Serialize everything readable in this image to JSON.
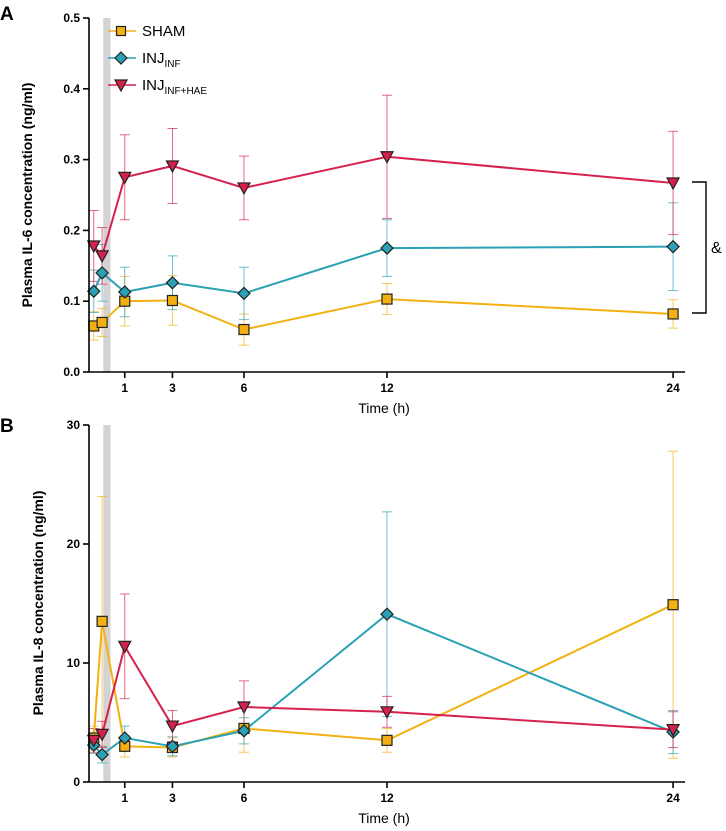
{
  "chart_data": [
    {
      "panel": "A",
      "type": "line",
      "ylabel": "Plasma  IL-6 concentration (ng/ml)",
      "xlabel": "Time (h)",
      "ylim": [
        0,
        0.5
      ],
      "yticks": [
        "0.0",
        "0.1",
        "0.2",
        "0.3",
        "0.4",
        "0.5"
      ],
      "yticks_values": [
        0,
        0.1,
        0.2,
        0.3,
        0.4,
        0.5
      ],
      "xticks": [
        "1",
        "3",
        "6",
        "12",
        "24"
      ],
      "xticks_values": [
        1,
        3,
        6,
        12,
        24
      ],
      "xlim": [
        -0.5,
        24.5
      ],
      "shaded_interval": [
        0.1,
        0.4
      ],
      "significance_label": "&",
      "series": [
        {
          "name": "SHAM",
          "color": "#f2b111",
          "marker": "square",
          "x": [
            -0.3,
            0.05,
            1,
            3,
            6,
            12,
            24
          ],
          "y": [
            0.065,
            0.07,
            0.1,
            0.101,
            0.06,
            0.103,
            0.082
          ],
          "err": [
            0.02,
            0.02,
            0.035,
            0.035,
            0.022,
            0.022,
            0.02
          ]
        },
        {
          "name": "INJ",
          "subscript": "INF",
          "color": "#2aa1b5",
          "marker": "diamond",
          "x": [
            -0.3,
            0.05,
            1,
            3,
            6,
            12,
            24
          ],
          "y": [
            0.114,
            0.14,
            0.113,
            0.126,
            0.111,
            0.175,
            0.177
          ],
          "err": [
            0.03,
            0.04,
            0.035,
            0.038,
            0.037,
            0.04,
            0.062
          ]
        },
        {
          "name": "INJ",
          "subscript": "INF+HAE",
          "color": "#d6204e",
          "marker": "triangle-down",
          "x": [
            -0.3,
            0.05,
            1,
            3,
            6,
            12,
            24
          ],
          "y": [
            0.178,
            0.164,
            0.275,
            0.291,
            0.26,
            0.304,
            0.267
          ],
          "err": [
            0.05,
            0.04,
            0.06,
            0.053,
            0.045,
            0.087,
            0.073
          ]
        }
      ]
    },
    {
      "panel": "B",
      "type": "line",
      "ylabel": "Plasma IL-8 concentration (ng/ml)",
      "xlabel": "Time (h)",
      "ylim": [
        0,
        30
      ],
      "yticks": [
        "0",
        "10",
        "20",
        "30"
      ],
      "yticks_values": [
        0,
        10,
        20,
        30
      ],
      "xticks": [
        "1",
        "3",
        "6",
        "12",
        "24"
      ],
      "xticks_values": [
        1,
        3,
        6,
        12,
        24
      ],
      "xlim": [
        -0.5,
        24.5
      ],
      "shaded_interval": [
        0.1,
        0.4
      ],
      "series": [
        {
          "name": "SHAM",
          "color": "#f2b111",
          "marker": "square",
          "x": [
            -0.3,
            0.05,
            1,
            3,
            6,
            12,
            24
          ],
          "y": [
            3.7,
            13.5,
            3.0,
            2.9,
            4.5,
            3.5,
            14.9
          ],
          "err": [
            1.0,
            10.5,
            0.9,
            0.8,
            2.0,
            1.0,
            12.9
          ]
        },
        {
          "name": "INJ",
          "subscript": "INF",
          "color": "#2aa1b5",
          "marker": "diamond",
          "x": [
            -0.3,
            0.05,
            1,
            3,
            6,
            12,
            24
          ],
          "y": [
            3.1,
            2.3,
            3.7,
            3.0,
            4.3,
            14.1,
            4.2
          ],
          "err": [
            0.7,
            0.7,
            1.0,
            0.8,
            1.1,
            8.6,
            1.8
          ]
        },
        {
          "name": "INJ",
          "subscript": "INF+HAE",
          "color": "#d6204e",
          "marker": "triangle-down",
          "x": [
            -0.3,
            0.05,
            1,
            3,
            6,
            12,
            24
          ],
          "y": [
            3.5,
            4.0,
            11.4,
            4.7,
            6.3,
            5.9,
            4.4
          ],
          "err": [
            1.0,
            1.1,
            4.4,
            1.3,
            2.2,
            1.3,
            1.5
          ]
        }
      ]
    }
  ]
}
